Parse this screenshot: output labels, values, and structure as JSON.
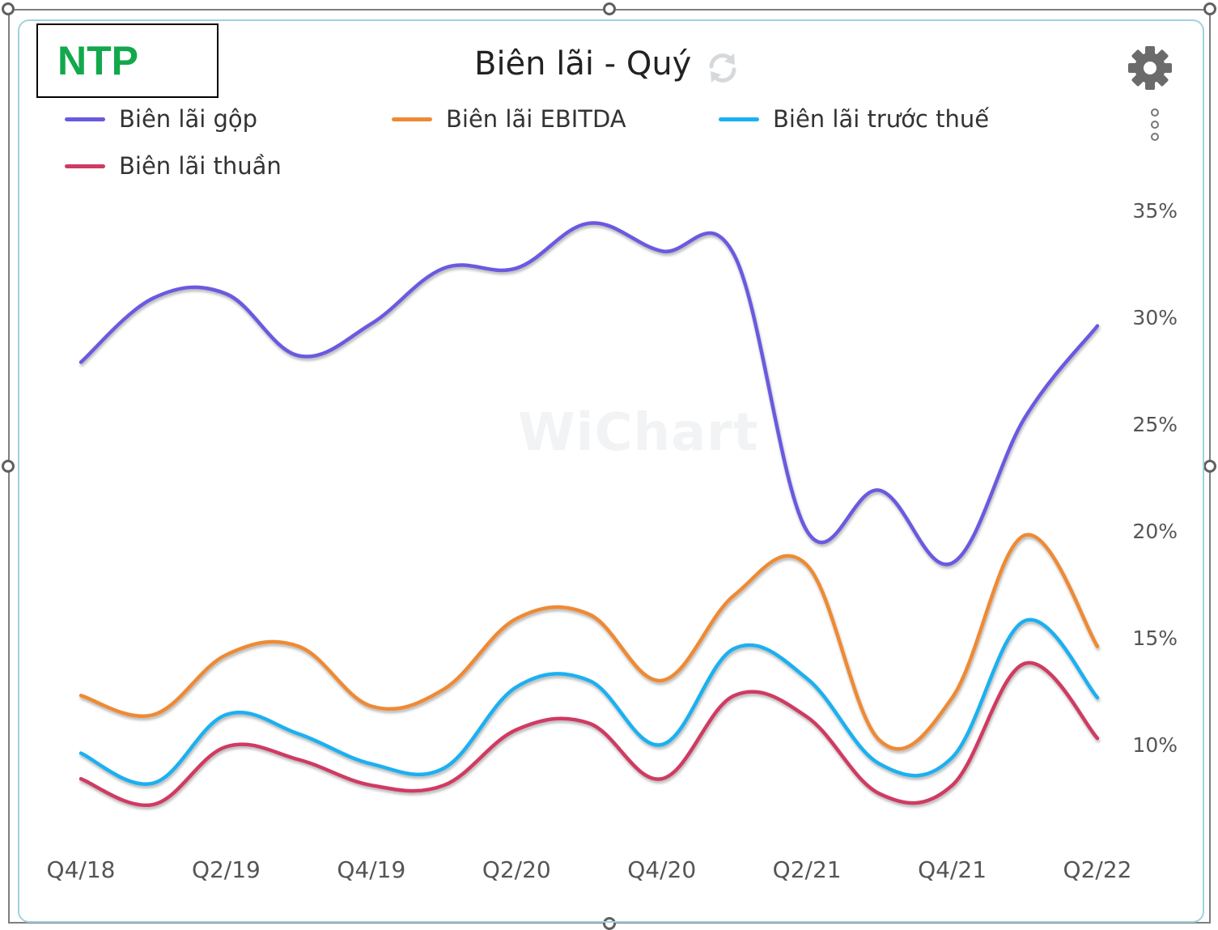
{
  "ticker": "NTP",
  "title": "Biên lãi - Quý",
  "icons": {
    "refresh": "refresh-icon",
    "settings": "gear-icon",
    "menu": "vertical-dots-icon"
  },
  "watermark": "WiChart",
  "legend": [
    {
      "label": "Biên lãi gộp",
      "color": "#6a5ae0"
    },
    {
      "label": "Biên lãi EBITDA",
      "color": "#ee8a35"
    },
    {
      "label": "Biên lãi trước thuế",
      "color": "#1bb0f0"
    },
    {
      "label": "Biên lãi thuần",
      "color": "#cf3b62"
    }
  ],
  "chart_data": {
    "type": "line",
    "title": "Biên lãi - Quý",
    "categories": [
      "Q4/18",
      "Q1/19",
      "Q2/19",
      "Q3/19",
      "Q4/19",
      "Q1/20",
      "Q2/20",
      "Q3/20",
      "Q4/20",
      "Q1/21",
      "Q2/21",
      "Q3/21",
      "Q4/21",
      "Q1/22",
      "Q2/22"
    ],
    "x_tick_labels": [
      "Q4/18",
      "Q2/19",
      "Q4/19",
      "Q2/20",
      "Q4/20",
      "Q2/21",
      "Q4/21",
      "Q2/22"
    ],
    "y_tick_labels": [
      "10%",
      "15%",
      "20%",
      "25%",
      "30%",
      "35%"
    ],
    "ylim": [
      10,
      35
    ],
    "y_unit": "%",
    "series": [
      {
        "name": "Biên lãi gộp",
        "color": "#6a5ae0",
        "values": [
          27.9,
          30.9,
          31.1,
          28.2,
          29.7,
          32.3,
          32.3,
          34.4,
          33.1,
          32.9,
          20.0,
          21.9,
          18.5,
          25.3,
          29.6
        ]
      },
      {
        "name": "Biên lãi EBITDA",
        "color": "#ee8a35",
        "values": [
          12.3,
          11.4,
          14.2,
          14.6,
          11.8,
          12.6,
          15.9,
          16.1,
          13.0,
          17.0,
          18.4,
          10.2,
          12.2,
          19.8,
          14.6
        ]
      },
      {
        "name": "Biên lãi trước thuế",
        "color": "#1bb0f0",
        "values": [
          9.6,
          8.2,
          11.4,
          10.5,
          9.1,
          8.9,
          12.7,
          13.0,
          10.0,
          14.5,
          13.1,
          9.1,
          9.4,
          15.8,
          12.2
        ]
      },
      {
        "name": "Biên lãi thuần",
        "color": "#cf3b62",
        "values": [
          8.4,
          7.2,
          9.9,
          9.3,
          8.1,
          8.1,
          10.7,
          11.0,
          8.4,
          12.3,
          11.3,
          7.7,
          8.1,
          13.8,
          10.3
        ]
      }
    ]
  }
}
